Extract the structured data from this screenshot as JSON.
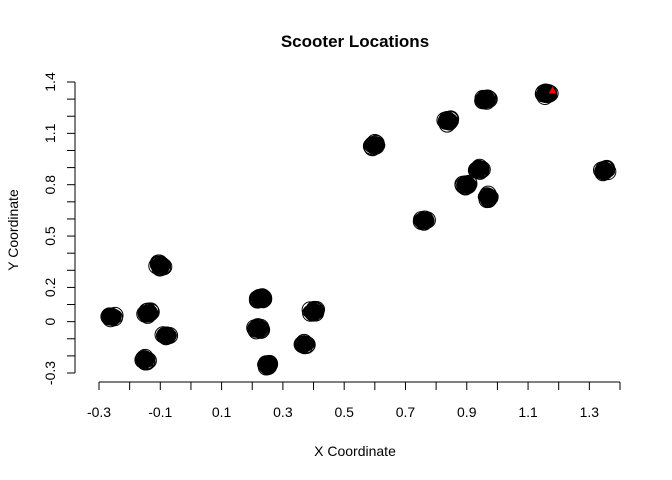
{
  "chart_data": {
    "type": "scatter",
    "title": "Scooter Locations",
    "xlabel": "X Coordinate",
    "ylabel": "Y Coordinate",
    "xlim": [
      -0.3,
      1.4
    ],
    "ylim": [
      -0.3,
      1.4
    ],
    "xticks": [
      "-0.3",
      "-0.1",
      "0.1",
      "0.3",
      "0.5",
      "0.7",
      "0.9",
      "1.1",
      "1.3"
    ],
    "yticks": [
      "-0.3",
      "0",
      "0.2",
      "0.5",
      "0.8",
      "1.1",
      "1.4"
    ],
    "ytick_values": [
      -0.3,
      0,
      0.2,
      0.5,
      0.8,
      1.1,
      1.4
    ],
    "ytick_minor": [
      -0.2,
      -0.1,
      0.1,
      0.3,
      0.4,
      0.6,
      0.7,
      0.9,
      1.0,
      1.2,
      1.3
    ],
    "point_style": "open circle",
    "clusters": [
      {
        "x": -0.26,
        "y": 0.03
      },
      {
        "x": -0.15,
        "y": -0.22
      },
      {
        "x": -0.14,
        "y": 0.05
      },
      {
        "x": -0.1,
        "y": 0.33
      },
      {
        "x": -0.08,
        "y": -0.08
      },
      {
        "x": 0.22,
        "y": -0.04
      },
      {
        "x": 0.23,
        "y": 0.13
      },
      {
        "x": 0.25,
        "y": -0.25
      },
      {
        "x": 0.37,
        "y": -0.13
      },
      {
        "x": 0.4,
        "y": 0.06
      },
      {
        "x": 0.6,
        "y": 1.03
      },
      {
        "x": 0.76,
        "y": 0.59
      },
      {
        "x": 0.84,
        "y": 1.17
      },
      {
        "x": 0.9,
        "y": 0.8
      },
      {
        "x": 0.94,
        "y": 0.89
      },
      {
        "x": 0.96,
        "y": 1.3
      },
      {
        "x": 0.97,
        "y": 0.73
      },
      {
        "x": 1.16,
        "y": 1.33
      },
      {
        "x": 1.35,
        "y": 0.88
      }
    ],
    "highlight": {
      "x": 1.18,
      "y": 1.35,
      "marker": "triangle",
      "color": "#ff0000"
    }
  }
}
